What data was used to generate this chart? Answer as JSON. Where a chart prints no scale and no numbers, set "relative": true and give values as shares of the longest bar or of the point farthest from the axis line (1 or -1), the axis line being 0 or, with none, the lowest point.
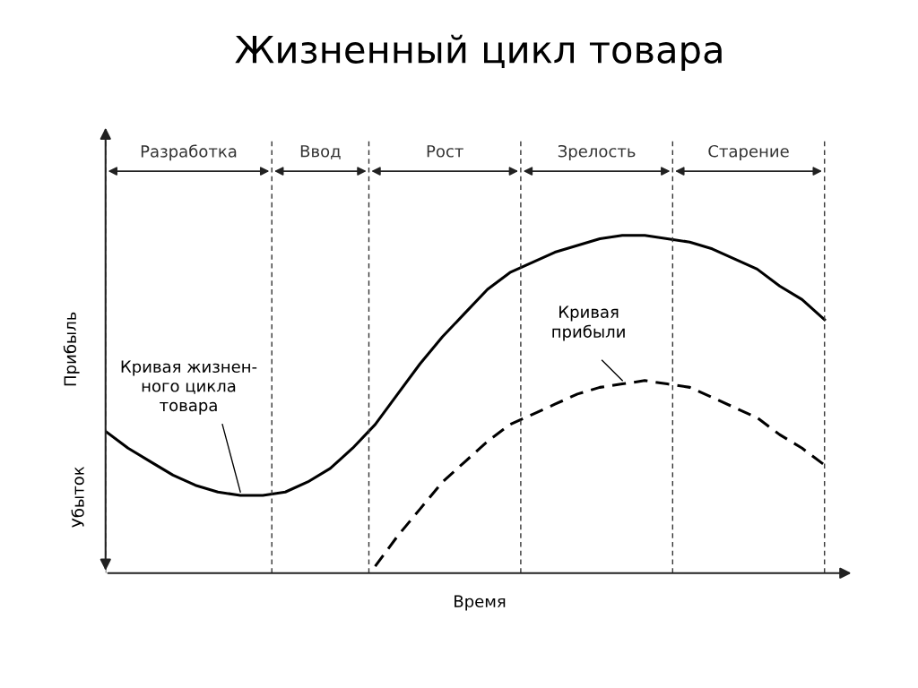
{
  "chart_data": {
    "type": "line",
    "title": "Жизненный цикл товара",
    "xlabel": "Время",
    "ylabel": "Прибыль",
    "relative": true,
    "legend": false,
    "grid": false,
    "categories": [
      null,
      null,
      null,
      null,
      null,
      null,
      null,
      null,
      null,
      null,
      null,
      null,
      null,
      null,
      null,
      null,
      null,
      null,
      null,
      null,
      null,
      null,
      null,
      null,
      null,
      null,
      null,
      null,
      null,
      null,
      null,
      null,
      null
    ],
    "series": [
      {
        "name": "Кривая жизнен-\nного цикла\nтовара",
        "color": "#000000",
        "line_style": "solid",
        "values": [
          0.42,
          0.37,
          0.33,
          0.29,
          0.26,
          0.24,
          0.23,
          0.23,
          0.24,
          0.27,
          0.31,
          0.37,
          0.44,
          0.53,
          0.62,
          0.7,
          0.77,
          0.84,
          0.89,
          0.92,
          0.95,
          0.97,
          0.99,
          1.0,
          1.0,
          0.99,
          0.98,
          0.96,
          0.93,
          0.9,
          0.85,
          0.81,
          0.75
        ]
      },
      {
        "name": "Кривая\nприбыли",
        "color": "#000000",
        "line_style": "dashed",
        "values": [
          null,
          null,
          null,
          null,
          null,
          null,
          null,
          null,
          null,
          null,
          null,
          null,
          0.02,
          0.11,
          0.19,
          0.27,
          0.33,
          0.39,
          0.44,
          0.47,
          0.5,
          0.53,
          0.55,
          0.56,
          0.57,
          0.56,
          0.55,
          0.52,
          0.49,
          0.46,
          0.41,
          0.37,
          0.32
        ]
      }
    ],
    "annotations": [
      "Разработка",
      "Ввод",
      "Рост",
      "Зрелость",
      "Старение",
      "Убыток"
    ]
  }
}
